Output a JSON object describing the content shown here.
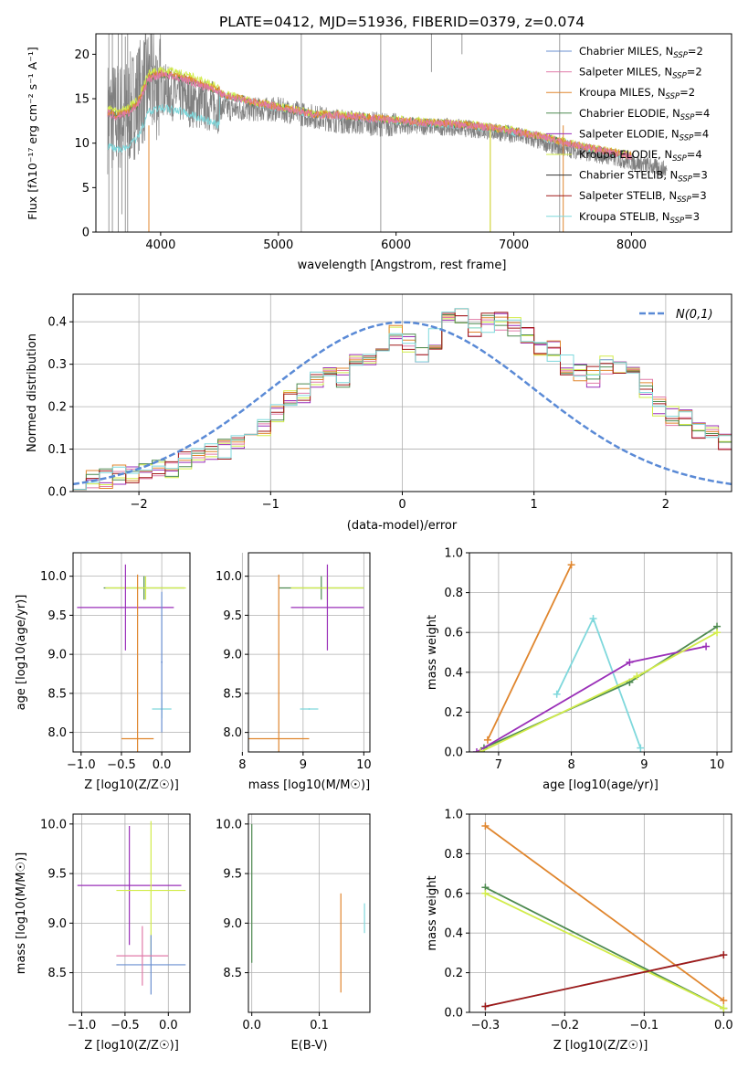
{
  "figure": {
    "title": "PLATE=0412, MJD=51936, FIBERID=0379, z=0.074"
  },
  "colors": {
    "chabrier_miles": "#6a8fd0",
    "salpeter_miles": "#e07aa8",
    "kroupa_miles": "#e0862e",
    "chabrier_elodie": "#4e8a50",
    "salpeter_elodie": "#9a2fb8",
    "kroupa_elodie": "#d2ec4a",
    "chabrier_stelib": "#333333",
    "salpeter_stelib": "#a01818",
    "kroupa_stelib": "#7fd8dc",
    "data": "#808080",
    "gaussian": "#5a8ad6",
    "grid": "#b0b0b0"
  },
  "chart_data": [
    {
      "id": "spectrum",
      "type": "line",
      "title": "PLATE=0412, MJD=51936, FIBERID=0379, z=0.074",
      "xlabel": "wavelength [Angstrom, rest frame]",
      "ylabel": "Flux [fλ10⁻¹⁷ erg cm⁻² s⁻¹ A⁻¹]",
      "xlim": [
        3450,
        8850
      ],
      "ylim": [
        0,
        22.3
      ],
      "xticks": [
        4000,
        5000,
        6000,
        7000,
        8000
      ],
      "yticks": [
        0,
        5,
        10,
        15,
        20
      ],
      "grid": false,
      "legend_position": "top-right",
      "legend": [
        "Chabrier MILES, N_SSP=2",
        "Salpeter MILES, N_SSP=2",
        "Kroupa MILES, N_SSP=2",
        "Chabrier ELODIE, N_SSP=4",
        "Salpeter ELODIE, N_SSP=4",
        "Kroupa ELODIE, N_SSP=4",
        "Chabrier STELIB, N_SSP=3",
        "Salpeter STELIB, N_SSP=3",
        "Kroupa STELIB, N_SSP=3"
      ],
      "observed_continuum": {
        "x": [
          3550,
          3700,
          3900,
          4100,
          4300,
          4600,
          5000,
          5500,
          6000,
          6500,
          7000,
          7400,
          7800,
          8300
        ],
        "y": [
          13,
          13,
          17,
          15.5,
          14.5,
          13.8,
          13.8,
          12.5,
          12,
          11.8,
          11,
          9.5,
          8.5,
          7
        ]
      },
      "model_continuum": {
        "x": [
          3550,
          3620,
          3700,
          3800,
          3900,
          4000,
          4200,
          4500,
          4800,
          5000,
          5300,
          5600,
          6000,
          6300,
          6600,
          6900,
          7200,
          7500,
          7800,
          8000
        ],
        "y": [
          13.2,
          12.8,
          13,
          14,
          17,
          17.5,
          17,
          15.5,
          14.5,
          14,
          13.2,
          13,
          12.5,
          12.2,
          12,
          11.5,
          10.8,
          9.8,
          9,
          8.5
        ]
      }
    },
    {
      "id": "residuals",
      "type": "line",
      "xlabel": "(data-model)/error",
      "ylabel": "Normed distribution",
      "xlim": [
        -2.5,
        2.5
      ],
      "ylim": [
        0,
        0.465
      ],
      "xticks": [
        -2,
        -1,
        0,
        1,
        2
      ],
      "yticks": [
        0.0,
        0.1,
        0.2,
        0.3,
        0.4
      ],
      "grid": true,
      "legend_position": "top-right",
      "legend": [
        "N(0,1)"
      ],
      "histogram": {
        "x_start": -2.5,
        "bin_width": 0.1,
        "values": [
          0.03,
          0.03,
          0.03,
          0.04,
          0.04,
          0.05,
          0.05,
          0.05,
          0.07,
          0.08,
          0.09,
          0.1,
          0.12,
          0.14,
          0.15,
          0.18,
          0.22,
          0.23,
          0.26,
          0.28,
          0.27,
          0.32,
          0.3,
          0.35,
          0.37,
          0.35,
          0.33,
          0.36,
          0.4,
          0.42,
          0.39,
          0.4,
          0.4,
          0.39,
          0.37,
          0.34,
          0.33,
          0.3,
          0.28,
          0.27,
          0.3,
          0.29,
          0.27,
          0.24,
          0.2,
          0.18,
          0.17,
          0.15,
          0.13,
          0.12,
          0.11,
          0.1,
          0.08,
          0.08,
          0.07,
          0.06,
          0.05,
          0.05,
          0.04,
          0.03
        ]
      }
    },
    {
      "id": "age_vs_Z",
      "type": "scatter",
      "xlabel": "Z [log10(Z/Z☉)]",
      "ylabel": "age  [log10(age/yr)]",
      "xlim": [
        -1.1,
        0.35
      ],
      "ylim": [
        7.75,
        10.3
      ],
      "xticks": [
        -1.0,
        -0.5,
        0.0
      ],
      "yticks": [
        8.0,
        8.5,
        9.0,
        9.5,
        10.0
      ],
      "grid": true,
      "points": [
        {
          "x": -0.22,
          "xerr": 0.5,
          "y": 9.85,
          "yerr": 0.15,
          "color": "#4e8a50"
        },
        {
          "x": -0.2,
          "xerr": 0.5,
          "y": 9.85,
          "yerr": 0.15,
          "color": "#d2ec4a"
        },
        {
          "x": -0.45,
          "xerr": 0.6,
          "y": 9.6,
          "yerr": 0.55,
          "color": "#9a2fb8"
        },
        {
          "x": -0.3,
          "xerr": 0.2,
          "y": 7.92,
          "yerr": 2.1,
          "color": "#e0862e"
        },
        {
          "x": 0.0,
          "xerr": 0.12,
          "y": 8.3,
          "yerr": 0.12,
          "color": "#7fd8dc"
        },
        {
          "x": 0.0,
          "xerr": 0.01,
          "y": 8.9,
          "yerr": 0.9,
          "color": "#6a8fd0"
        }
      ]
    },
    {
      "id": "age_vs_mass",
      "type": "scatter",
      "xlabel": "mass [log10(M/M☉)]",
      "ylabel": "",
      "xlim": [
        8.1,
        10.1
      ],
      "ylim": [
        7.75,
        10.3
      ],
      "xticks": [
        8,
        9,
        10
      ],
      "yticks": [
        8.0,
        8.5,
        9.0,
        9.5,
        10.0
      ],
      "grid": true,
      "points": [
        {
          "x": 9.3,
          "xerr": 0.7,
          "y": 9.85,
          "yerr": 0.15,
          "color": "#4e8a50"
        },
        {
          "x": 9.4,
          "xerr": 0.6,
          "y": 9.85,
          "yerr": 0.15,
          "color": "#d2ec4a"
        },
        {
          "x": 9.4,
          "xerr": 0.6,
          "y": 9.6,
          "yerr": 0.55,
          "color": "#9a2fb8"
        },
        {
          "x": 8.6,
          "xerr": 0.5,
          "y": 7.92,
          "yerr": 2.1,
          "color": "#e0862e"
        },
        {
          "x": 9.1,
          "xerr": 0.15,
          "y": 8.3,
          "yerr": 0.01,
          "color": "#7fd8dc"
        }
      ]
    },
    {
      "id": "mass_weight_vs_age",
      "type": "line",
      "xlabel": "age  [log10(age/yr)]",
      "ylabel": "mass weight",
      "xlim": [
        6.6,
        10.2
      ],
      "ylim": [
        0,
        1
      ],
      "xticks": [
        7,
        8,
        9,
        10
      ],
      "yticks": [
        0.0,
        0.2,
        0.4,
        0.6,
        0.8,
        1.0
      ],
      "grid": true,
      "series": [
        {
          "color": "#e0862e",
          "x": [
            6.85,
            8.0
          ],
          "y": [
            0.06,
            0.94
          ]
        },
        {
          "color": "#7fd8dc",
          "x": [
            7.8,
            8.3,
            8.95
          ],
          "y": [
            0.29,
            0.67,
            0.02
          ]
        },
        {
          "color": "#4e8a50",
          "x": [
            6.8,
            8.8,
            10.0
          ],
          "y": [
            0.02,
            0.35,
            0.63
          ]
        },
        {
          "color": "#9a2fb8",
          "x": [
            6.7,
            8.8,
            9.85
          ],
          "y": [
            0.0,
            0.45,
            0.53
          ]
        },
        {
          "color": "#d2ec4a",
          "x": [
            6.75,
            8.9,
            10.0
          ],
          "y": [
            0.0,
            0.38,
            0.6
          ]
        }
      ]
    },
    {
      "id": "mass_vs_Z",
      "type": "scatter",
      "xlabel": "Z [log10(Z/Z☉)]",
      "ylabel": "mass [log10(M/M☉)]",
      "xlim": [
        -1.1,
        0.25
      ],
      "ylim": [
        8.1,
        10.1
      ],
      "xticks": [
        -1.0,
        -0.5,
        0.0
      ],
      "yticks": [
        8.5,
        9.0,
        9.5,
        10.0
      ],
      "grid": true,
      "points": [
        {
          "x": -0.45,
          "xerr": 0.6,
          "y": 9.38,
          "yerr": 0.6,
          "color": "#9a2fb8"
        },
        {
          "x": -0.2,
          "xerr": 0.4,
          "y": 9.33,
          "yerr": 0.7,
          "color": "#d2ec4a"
        },
        {
          "x": -0.2,
          "xerr": 0.4,
          "y": 8.58,
          "yerr": 0.3,
          "color": "#6a8fd0"
        },
        {
          "x": -0.3,
          "xerr": 0.3,
          "y": 8.67,
          "yerr": 0.3,
          "color": "#e07aa8"
        }
      ]
    },
    {
      "id": "mass_vs_ebv",
      "type": "scatter",
      "xlabel": "E(B-V)",
      "ylabel": "",
      "xlim": [
        -0.005,
        0.175
      ],
      "ylim": [
        8.1,
        10.1
      ],
      "xticks": [
        0.0,
        0.1
      ],
      "yticks": [
        8.5,
        9.0,
        9.5,
        10.0
      ],
      "grid": true,
      "points": [
        {
          "x": 0.0,
          "xerr": 0.0,
          "y": 9.3,
          "yerr": 0.7,
          "color": "#4e8a50"
        },
        {
          "x": 0.132,
          "xerr": 0.0,
          "y": 8.8,
          "yerr": 0.5,
          "color": "#e0862e"
        },
        {
          "x": 0.167,
          "xerr": 0.0,
          "y": 9.05,
          "yerr": 0.15,
          "color": "#7fd8dc"
        }
      ]
    },
    {
      "id": "mass_weight_vs_Z",
      "type": "line",
      "xlabel": "Z [log10(Z/Z☉)]",
      "ylabel": "mass weight",
      "xlim": [
        -0.32,
        0.01
      ],
      "ylim": [
        0,
        1
      ],
      "xticks": [
        -0.3,
        -0.2,
        -0.1,
        0.0
      ],
      "yticks": [
        0.0,
        0.2,
        0.4,
        0.6,
        0.8,
        1.0
      ],
      "grid": true,
      "series": [
        {
          "color": "#e0862e",
          "x": [
            -0.3,
            0.0
          ],
          "y": [
            0.94,
            0.06
          ]
        },
        {
          "color": "#4e8a50",
          "x": [
            -0.3,
            0.0
          ],
          "y": [
            0.63,
            0.02
          ]
        },
        {
          "color": "#d2ec4a",
          "x": [
            -0.3,
            0.0
          ],
          "y": [
            0.6,
            0.02
          ]
        },
        {
          "color": "#7fd8dc",
          "x": [
            -0.3,
            0.0
          ],
          "y": [
            0.03,
            0.29
          ]
        },
        {
          "color": "#a01818",
          "x": [
            -0.3,
            0.0
          ],
          "y": [
            0.03,
            0.29
          ]
        }
      ]
    }
  ]
}
